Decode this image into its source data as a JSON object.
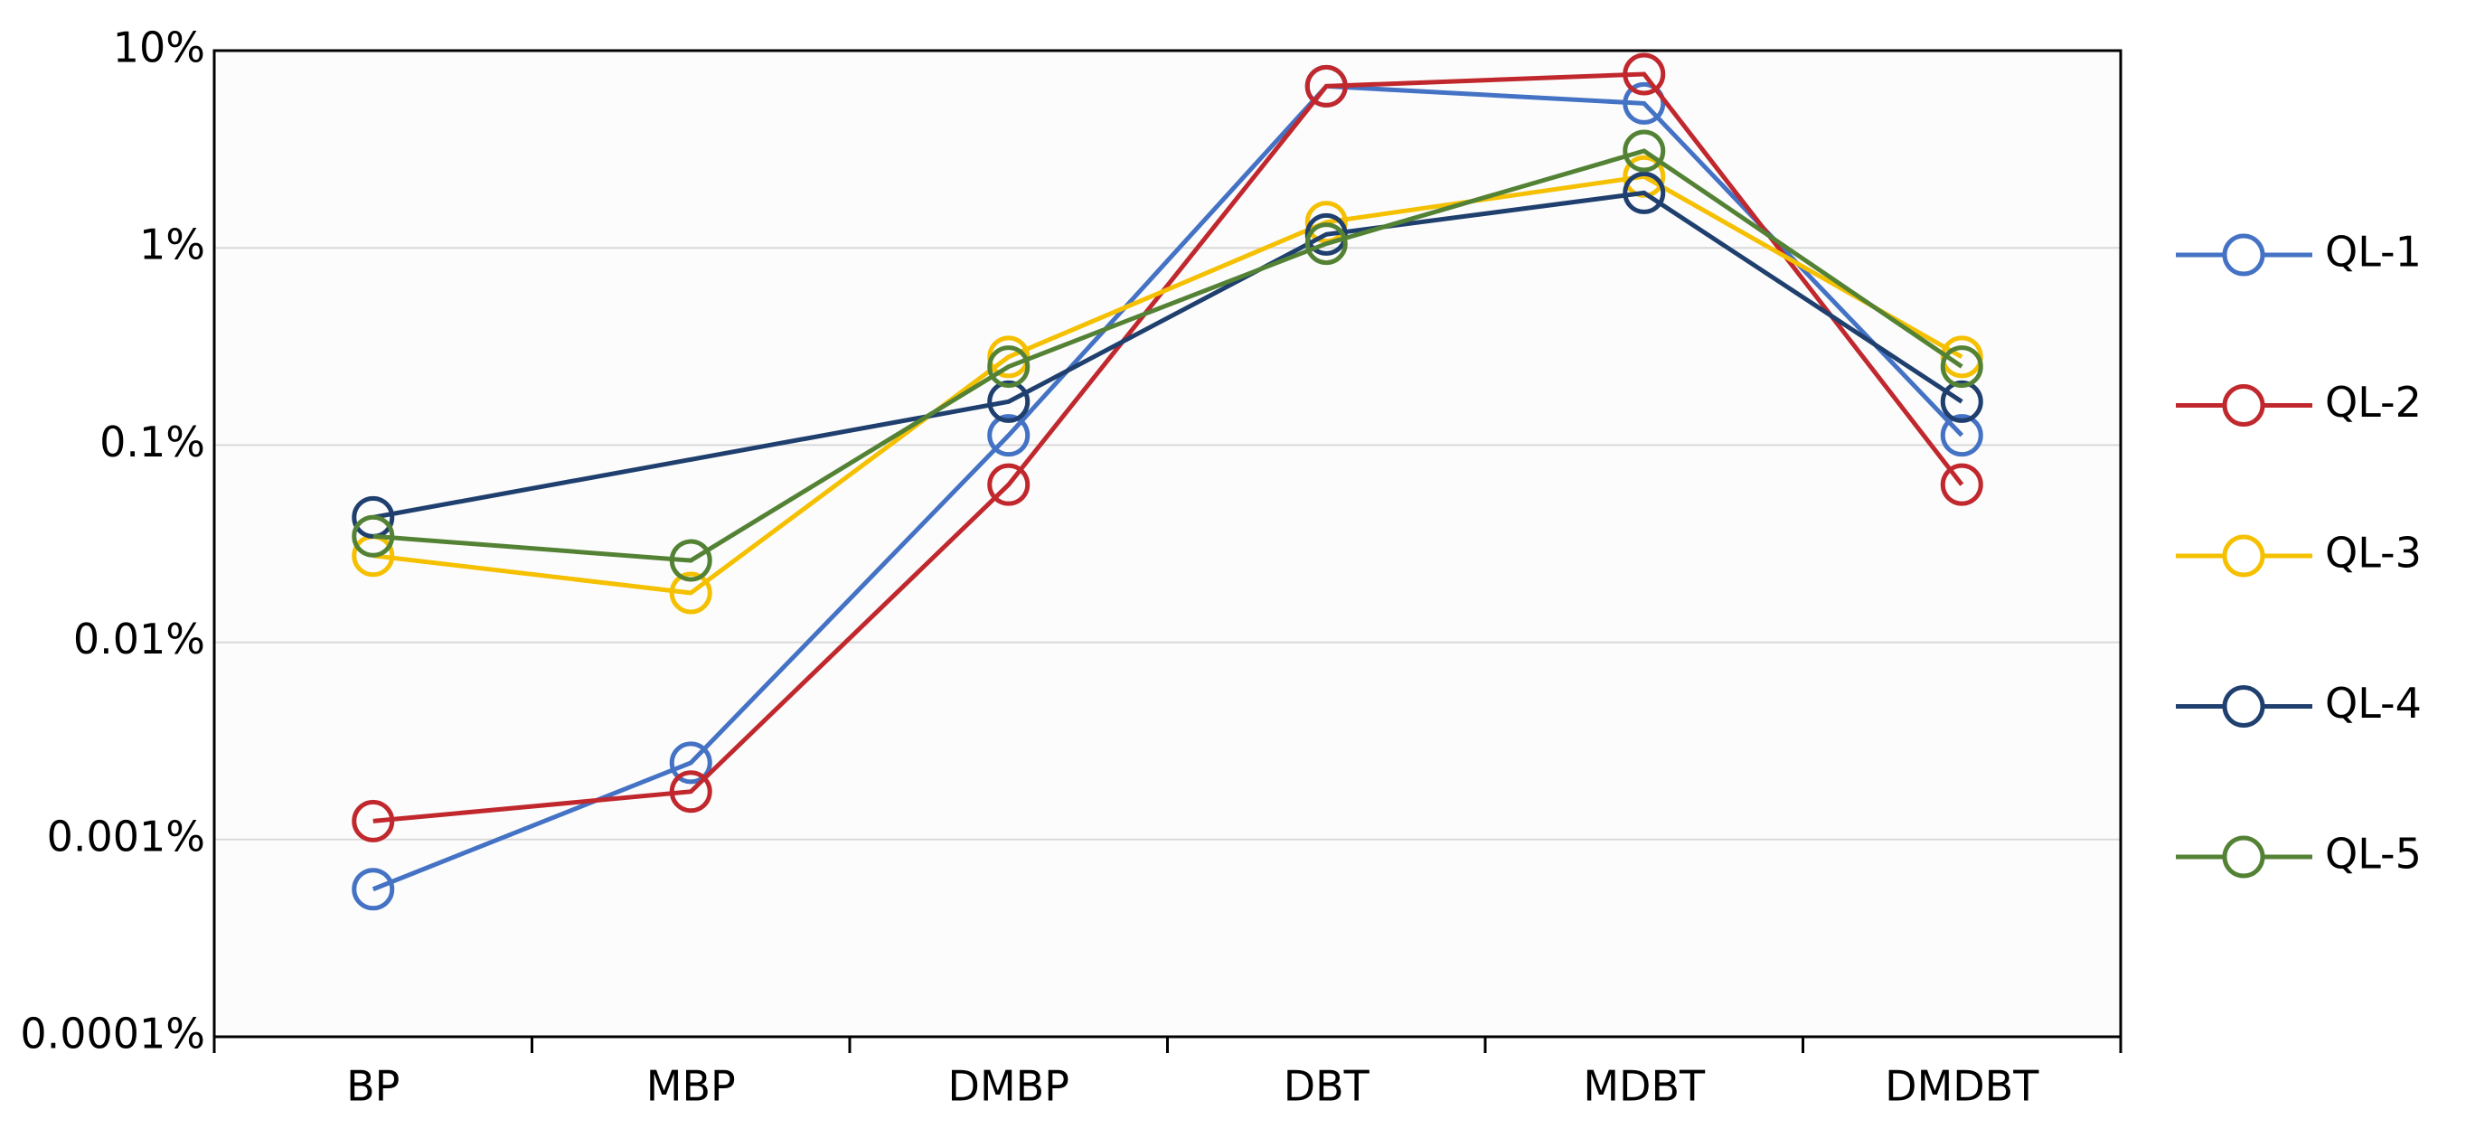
{
  "chart_data": {
    "type": "line",
    "log_scale": true,
    "grid": true,
    "connect_gaps": true,
    "legend": "right",
    "categories": [
      "BP",
      "MBP",
      "DMBP",
      "DBT",
      "MDBT",
      "DMDBT"
    ],
    "ylim": [
      0.0001,
      10
    ],
    "yticks": [
      {
        "value": 0.0001,
        "label": "0.0001%"
      },
      {
        "value": 0.001,
        "label": "0.001%"
      },
      {
        "value": 0.01,
        "label": "0.01%"
      },
      {
        "value": 0.1,
        "label": "0.1%"
      },
      {
        "value": 1,
        "label": "1%"
      },
      {
        "value": 10,
        "label": "10%"
      }
    ],
    "series": [
      {
        "name": "QL-1",
        "color": "#4472c4",
        "values": [
          0.00056,
          0.00245,
          0.112,
          6.6,
          5.4,
          0.112
        ]
      },
      {
        "name": "QL-2",
        "color": "#c0282d",
        "values": [
          0.00124,
          0.00175,
          0.063,
          6.6,
          7.6,
          0.063
        ]
      },
      {
        "name": "QL-3",
        "color": "#f5c000",
        "values": [
          0.0275,
          0.0178,
          0.28,
          1.35,
          2.3,
          0.28
        ]
      },
      {
        "name": "QL-4",
        "color": "#1f3f6e",
        "values": [
          0.043,
          null,
          0.166,
          1.17,
          1.9,
          0.166
        ]
      },
      {
        "name": "QL-5",
        "color": "#548235",
        "values": [
          0.0345,
          0.026,
          0.25,
          1.05,
          3.1,
          0.25
        ]
      }
    ]
  }
}
